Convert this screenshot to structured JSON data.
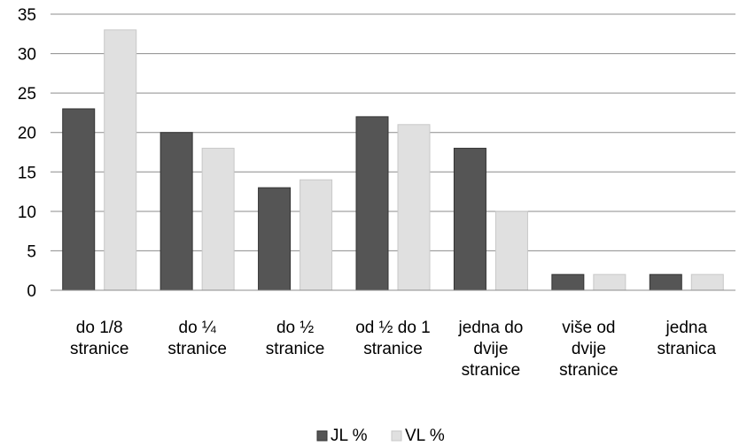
{
  "chart_data": {
    "type": "bar",
    "categories": [
      [
        "do 1/8",
        "stranice"
      ],
      [
        "do ¼",
        "stranice"
      ],
      [
        "do ½",
        "stranice"
      ],
      [
        "od ½ do 1",
        "stranice"
      ],
      [
        "jedna do",
        "dvije",
        "stranice"
      ],
      [
        "više od",
        "dvije",
        "stranice"
      ],
      [
        "jedna",
        "stranica"
      ]
    ],
    "series": [
      {
        "name": "JL %",
        "color": "#555555",
        "values": [
          23,
          20,
          13,
          22,
          18,
          2,
          2
        ]
      },
      {
        "name": "VL %",
        "color": "#e0e0e0",
        "values": [
          33,
          18,
          14,
          21,
          10,
          2,
          2
        ]
      }
    ],
    "ylim": [
      0,
      35
    ],
    "yticks": [
      0,
      5,
      10,
      15,
      20,
      25,
      30,
      35
    ],
    "grid": true,
    "legend": "bottom"
  }
}
